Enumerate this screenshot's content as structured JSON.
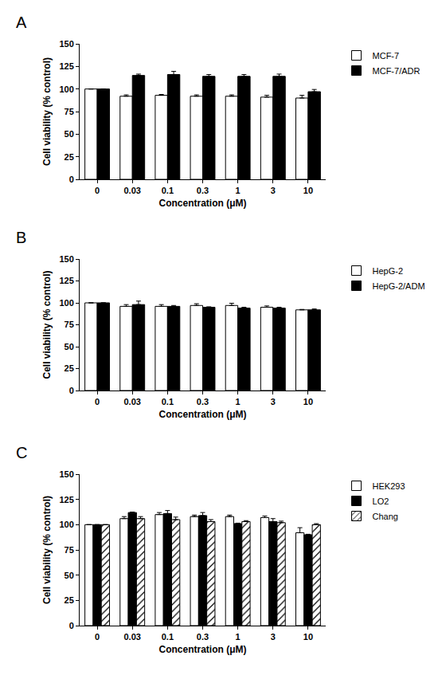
{
  "chart_data": [
    {
      "type": "bar",
      "title": "A",
      "x_label": "Concentration (μM)",
      "y_label": "Cell viability (% control)",
      "categories": [
        "0",
        "0.03",
        "0.1",
        "0.3",
        "1",
        "3",
        "10"
      ],
      "series": [
        {
          "name": "MCF-7",
          "color": "#ffffff",
          "values": [
            100,
            92,
            93,
            92,
            92,
            91,
            90
          ],
          "errors": [
            0,
            1.5,
            1,
            1.5,
            1.5,
            2,
            3
          ]
        },
        {
          "name": "MCF-7/ADR",
          "color": "#000000",
          "values": [
            100,
            115,
            116,
            114,
            114,
            114,
            97
          ],
          "errors": [
            0,
            1.5,
            3.5,
            2,
            2,
            2.5,
            2.5
          ]
        }
      ],
      "ylim": [
        0,
        150
      ],
      "yticks": [
        0,
        25,
        50,
        75,
        100,
        125,
        150
      ],
      "legend": "upper right"
    },
    {
      "type": "bar",
      "title": "B",
      "x_label": "Concentration (μM)",
      "y_label": "Cell viability (% control)",
      "categories": [
        "0",
        "0.03",
        "0.1",
        "0.3",
        "1",
        "3",
        "10"
      ],
      "series": [
        {
          "name": "HepG-2",
          "color": "#ffffff",
          "values": [
            100,
            96,
            96,
            97,
            97,
            95,
            92
          ],
          "errors": [
            0,
            2,
            2,
            2,
            2.5,
            1.5,
            0.5
          ]
        },
        {
          "name": "HepG-2/ADM",
          "color": "#000000",
          "values": [
            100,
            98,
            96,
            95,
            94,
            94,
            92
          ],
          "errors": [
            0,
            4,
            1,
            0.5,
            1,
            1,
            1
          ]
        }
      ],
      "ylim": [
        0,
        150
      ],
      "yticks": [
        0,
        25,
        50,
        75,
        100,
        125,
        150
      ],
      "legend": "upper right"
    },
    {
      "type": "bar",
      "title": "C",
      "x_label": "Concentration (μM)",
      "y_label": "Cell viability (% control)",
      "categories": [
        "0",
        "0.03",
        "0.1",
        "0.3",
        "1",
        "3",
        "10"
      ],
      "series": [
        {
          "name": "HEK293",
          "color": "#ffffff",
          "values": [
            100,
            106,
            110,
            108,
            108,
            107,
            92
          ],
          "errors": [
            0,
            2,
            2,
            1.5,
            1.5,
            1.5,
            5
          ]
        },
        {
          "name": "LO2",
          "color": "#000000",
          "values": [
            100,
            112,
            111,
            109,
            101,
            103,
            90
          ],
          "errors": [
            0,
            0.5,
            3,
            3,
            0.5,
            3,
            0.5
          ]
        },
        {
          "name": "Chang",
          "color": "#ffffff",
          "marker": "hatched",
          "values": [
            100,
            106,
            105,
            103,
            103,
            102,
            100
          ],
          "errors": [
            0,
            2,
            2.5,
            2,
            1,
            1.5,
            1
          ]
        }
      ],
      "ylim": [
        0,
        150
      ],
      "yticks": [
        0,
        25,
        50,
        75,
        100,
        125,
        150
      ],
      "legend": "upper right"
    }
  ]
}
